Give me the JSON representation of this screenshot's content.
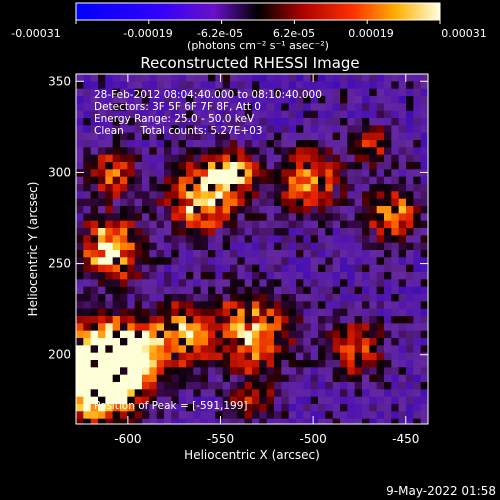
{
  "colorbar": {
    "tick_labels": [
      "-0.00031",
      "-0.00019",
      "-6.2e-05",
      "6.2e-05",
      "0.00019",
      "0.00031"
    ],
    "units_label": "(photons cm⁻² s⁻¹ asec⁻²)",
    "range": [
      -0.00031,
      0.00031
    ]
  },
  "image": {
    "title": "Reconstructed RHESSI Image",
    "annotations": [
      "28-Feb-2012 08:04:40.000 to 08:10:40.000",
      "Detectors: 3F 5F 6F 7F 8F, Att 0",
      "Energy Range: 25.0 - 50.0 keV",
      "Clean     Total counts: 5.27E+03"
    ],
    "peak_label": "Position of Peak = [-591,199]"
  },
  "x_axis": {
    "label": "Heliocentric X (arcsec)",
    "ticks": [
      "-600",
      "-550",
      "-500",
      "-450"
    ],
    "range": [
      -628,
      -438
    ]
  },
  "y_axis": {
    "label": "Heliocentric Y (arcsec)",
    "ticks": [
      "200",
      "250",
      "300",
      "350"
    ],
    "range": [
      162,
      354
    ]
  },
  "timestamp": "9-May-2022 01:58",
  "colors": {
    "background": "#000000",
    "foreground": "#ffffff"
  }
}
